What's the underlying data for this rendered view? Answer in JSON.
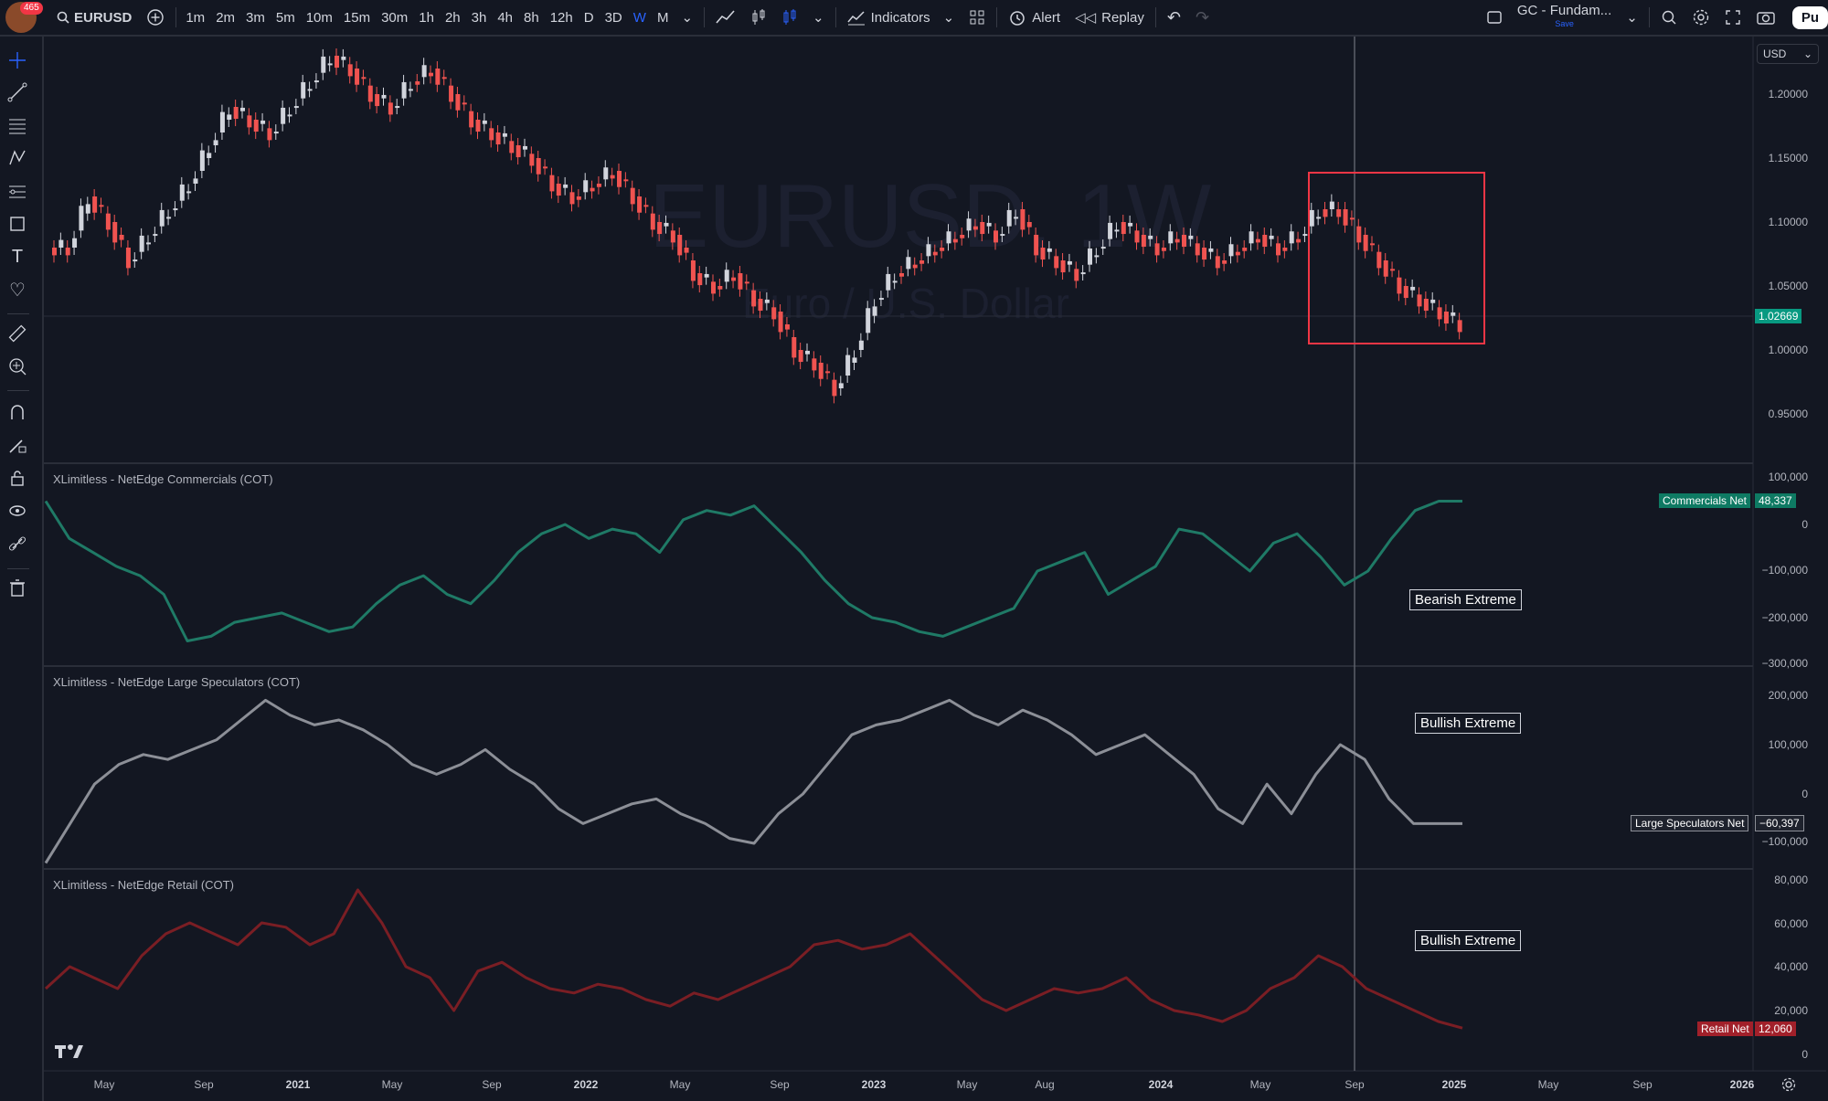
{
  "topbar": {
    "notifications": "465",
    "symbol": "EURUSD",
    "intervals": [
      "1m",
      "2m",
      "3m",
      "5m",
      "10m",
      "15m",
      "30m",
      "1h",
      "2h",
      "3h",
      "4h",
      "8h",
      "12h",
      "D",
      "3D",
      "W",
      "M"
    ],
    "active_interval": "W",
    "indicators_label": "Indicators",
    "alert_label": "Alert",
    "replay_label": "Replay",
    "layout_name": "GC - Fundam...",
    "layout_save": "Save",
    "publish_label": "Pu"
  },
  "chart": {
    "watermark_symbol": "EURUSD, 1W",
    "watermark_desc": "Euro / U.S. Dollar",
    "currency": "USD",
    "price_axis": [
      "1.20000",
      "1.15000",
      "1.10000",
      "1.05000",
      "1.00000",
      "0.95000"
    ],
    "last_price": "1.02669",
    "colors": {
      "up": "#d1d4dc",
      "down": "#f05350",
      "highlight_box": "#f23645",
      "background": "#131722"
    }
  },
  "panes": [
    {
      "title": "XLimitless - NetEdge Commercials (COT)",
      "axis": [
        "100,000",
        "0",
        "−100,000",
        "−200,000",
        "−300,000"
      ],
      "tag_label": "Commercials Net",
      "tag_value": "48,337",
      "annotation": "Bearish Extreme",
      "color": "#1f7a66"
    },
    {
      "title": "XLimitless - NetEdge Large Speculators (COT)",
      "axis": [
        "200,000",
        "100,000",
        "0",
        "−100,000"
      ],
      "tag_label": "Large Speculators Net",
      "tag_value": "−60,397",
      "annotation": "Bullish Extreme",
      "color": "#8c8f97"
    },
    {
      "title": "XLimitless - NetEdge Retail (COT)",
      "axis": [
        "80,000",
        "60,000",
        "40,000",
        "20,000",
        "0"
      ],
      "tag_label": "Retail Net",
      "tag_value": "12,060",
      "annotation": "Bullish Extreme",
      "color": "#7a1e24"
    }
  ],
  "time_axis": [
    {
      "label": "May",
      "bold": false
    },
    {
      "label": "Sep",
      "bold": false
    },
    {
      "label": "2021",
      "bold": true
    },
    {
      "label": "May",
      "bold": false
    },
    {
      "label": "Sep",
      "bold": false
    },
    {
      "label": "2022",
      "bold": true
    },
    {
      "label": "May",
      "bold": false
    },
    {
      "label": "Sep",
      "bold": false
    },
    {
      "label": "2023",
      "bold": true
    },
    {
      "label": "May",
      "bold": false
    },
    {
      "label": "Aug",
      "bold": false
    },
    {
      "label": "2024",
      "bold": true
    },
    {
      "label": "May",
      "bold": false
    },
    {
      "label": "Sep",
      "bold": false
    },
    {
      "label": "2025",
      "bold": true
    },
    {
      "label": "May",
      "bold": false
    },
    {
      "label": "Sep",
      "bold": false
    },
    {
      "label": "2026",
      "bold": true
    }
  ],
  "series": {
    "price_path": [
      1.08,
      1.12,
      1.1,
      1.07,
      1.09,
      1.11,
      1.13,
      1.16,
      1.19,
      1.18,
      1.17,
      1.19,
      1.21,
      1.23,
      1.22,
      1.2,
      1.19,
      1.21,
      1.22,
      1.2,
      1.18,
      1.17,
      1.16,
      1.15,
      1.13,
      1.12,
      1.13,
      1.14,
      1.12,
      1.1,
      1.09,
      1.06,
      1.05,
      1.06,
      1.04,
      1.03,
      1.0,
      0.99,
      0.97,
      1.0,
      1.04,
      1.06,
      1.07,
      1.08,
      1.09,
      1.1,
      1.09,
      1.11,
      1.08,
      1.07,
      1.06,
      1.08,
      1.1,
      1.09,
      1.08,
      1.09,
      1.08,
      1.07,
      1.08,
      1.09,
      1.08,
      1.09,
      1.11,
      1.11,
      1.09,
      1.07,
      1.05,
      1.04,
      1.03,
      1.02
    ],
    "commercials": [
      50,
      -30,
      -60,
      -90,
      -110,
      -150,
      -250,
      -240,
      -210,
      -200,
      -190,
      -210,
      -230,
      -220,
      -170,
      -130,
      -110,
      -150,
      -170,
      -120,
      -60,
      -20,
      0,
      -30,
      -10,
      -20,
      -60,
      10,
      30,
      20,
      40,
      -10,
      -60,
      -120,
      -170,
      -200,
      -210,
      -230,
      -240,
      -220,
      -200,
      -180,
      -100,
      -80,
      -60,
      -150,
      -120,
      -90,
      -10,
      -20,
      -60,
      -100,
      -40,
      -20,
      -70,
      -130,
      -100,
      -30,
      30,
      50,
      50
    ],
    "speculators": [
      -140,
      -60,
      20,
      60,
      80,
      70,
      90,
      110,
      150,
      190,
      160,
      140,
      150,
      130,
      100,
      60,
      40,
      60,
      90,
      50,
      20,
      -30,
      -60,
      -40,
      -20,
      -10,
      -40,
      -60,
      -90,
      -100,
      -40,
      0,
      60,
      120,
      140,
      150,
      170,
      190,
      160,
      140,
      170,
      150,
      120,
      80,
      100,
      120,
      80,
      40,
      -30,
      -60,
      20,
      -40,
      40,
      100,
      70,
      -10,
      -60,
      -60,
      -60
    ],
    "retail": [
      30,
      40,
      35,
      30,
      45,
      55,
      60,
      55,
      50,
      60,
      58,
      50,
      55,
      75,
      60,
      40,
      35,
      20,
      38,
      42,
      35,
      30,
      28,
      32,
      30,
      25,
      22,
      28,
      25,
      30,
      35,
      40,
      50,
      52,
      48,
      50,
      55,
      45,
      35,
      25,
      20,
      25,
      30,
      28,
      30,
      35,
      25,
      20,
      18,
      15,
      20,
      30,
      35,
      45,
      40,
      30,
      25,
      20,
      15,
      12
    ]
  }
}
